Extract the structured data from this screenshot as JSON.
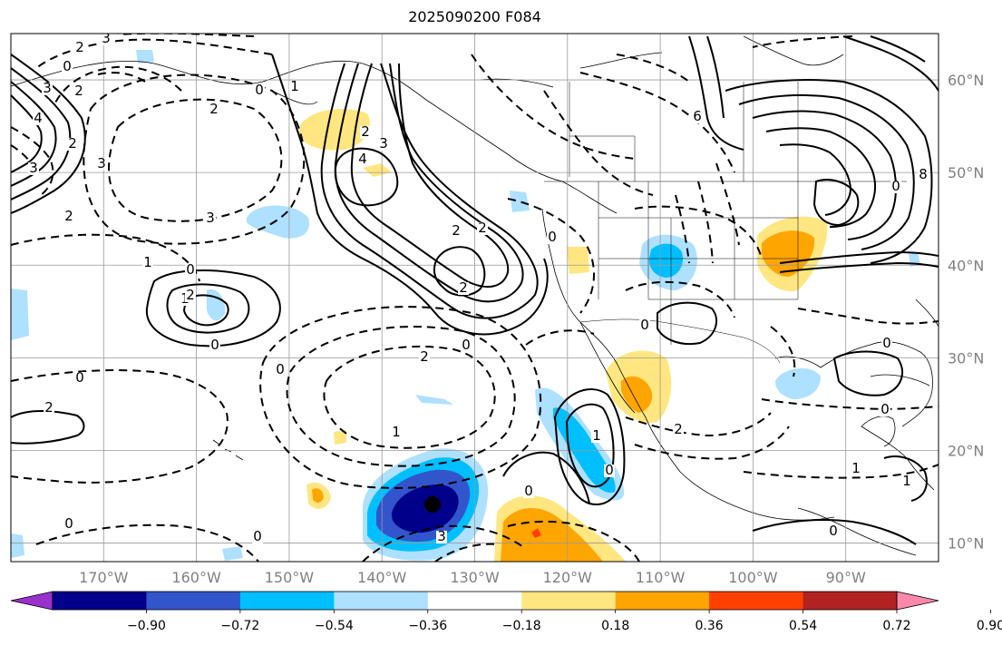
{
  "title": "2025090200 F084",
  "map": {
    "lon_range": [
      -180,
      -80
    ],
    "lat_range": [
      8,
      65
    ],
    "lat_labels": [
      "10°N",
      "20°N",
      "30°N",
      "40°N",
      "50°N",
      "60°N"
    ],
    "lat_values": [
      10,
      20,
      30,
      40,
      50,
      60
    ],
    "lon_labels": [
      "170°W",
      "160°W",
      "150°W",
      "140°W",
      "130°W",
      "120°W",
      "110°W",
      "100°W",
      "90°W"
    ],
    "lon_values": [
      -170,
      -160,
      -150,
      -140,
      -130,
      -120,
      -110,
      -100,
      -90
    ],
    "grid": true,
    "contour_labels": [
      "3",
      "2",
      "0",
      "2",
      "3",
      "4",
      "2",
      "3",
      "3",
      "2",
      "4",
      "3",
      "2",
      "0",
      "2",
      "2",
      "2",
      "1",
      "0",
      "2",
      "3",
      "1",
      "0",
      "1",
      "2",
      "0",
      "0",
      "2",
      "0",
      "0",
      "2",
      "1",
      "0",
      "0",
      "3",
      "0",
      "0",
      "1",
      "0",
      "6",
      "8",
      "0",
      "0",
      "0",
      "1",
      "0",
      "1",
      "2"
    ]
  },
  "colorbar": {
    "colors": [
      "#9932cc",
      "#00008b",
      "#3355cc",
      "#00bfff",
      "#aee0ff",
      "#ffffff",
      "#ffe680",
      "#ffa500",
      "#ff4000",
      "#b22222",
      "#ff88aa"
    ],
    "tick_labels": [
      "−0.90",
      "−0.72",
      "−0.54",
      "−0.36",
      "−0.18",
      "0.18",
      "0.36",
      "0.54",
      "0.72",
      "0.90"
    ],
    "tick_values": [
      -0.9,
      -0.72,
      -0.54,
      -0.36,
      -0.18,
      0.18,
      0.36,
      0.54,
      0.72,
      0.9
    ]
  }
}
